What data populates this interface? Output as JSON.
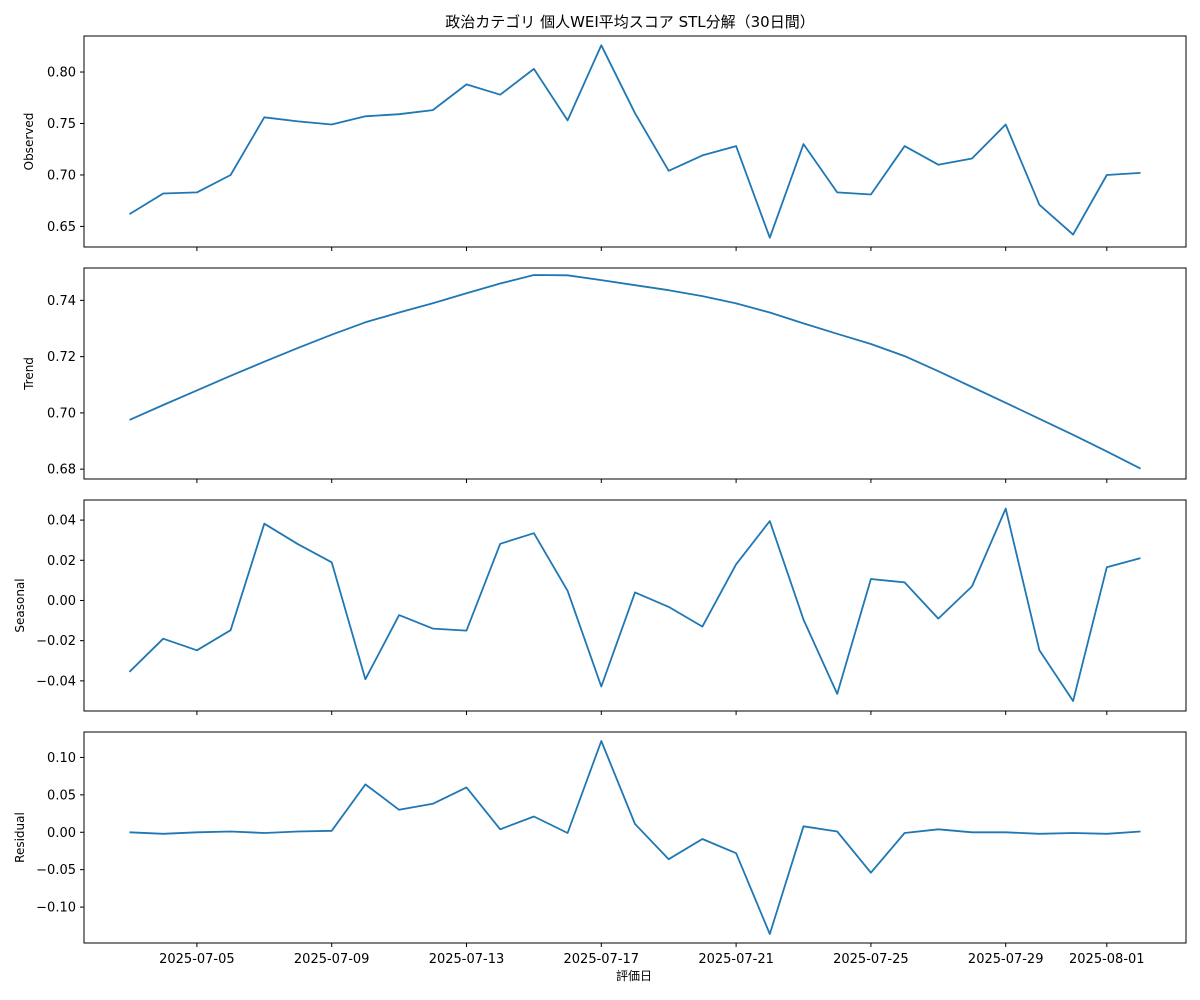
{
  "chart_data": {
    "type": "line",
    "title": "政治カテゴリ 個人WEI平均スコア STL分解（30日間）",
    "xlabel": "評価日",
    "x": [
      "2025-07-03",
      "2025-07-04",
      "2025-07-05",
      "2025-07-06",
      "2025-07-07",
      "2025-07-08",
      "2025-07-09",
      "2025-07-10",
      "2025-07-11",
      "2025-07-12",
      "2025-07-13",
      "2025-07-14",
      "2025-07-15",
      "2025-07-16",
      "2025-07-17",
      "2025-07-18",
      "2025-07-19",
      "2025-07-20",
      "2025-07-21",
      "2025-07-22",
      "2025-07-23",
      "2025-07-24",
      "2025-07-25",
      "2025-07-26",
      "2025-07-27",
      "2025-07-28",
      "2025-07-29",
      "2025-07-30",
      "2025-07-31",
      "2025-08-01",
      "2025-08-02"
    ],
    "x_ticks": [
      "2025-07-05",
      "2025-07-09",
      "2025-07-13",
      "2025-07-17",
      "2025-07-21",
      "2025-07-25",
      "2025-07-29",
      "2025-08-01"
    ],
    "line_color": "#1f77b4",
    "panels": [
      {
        "name": "observed",
        "ylabel": "Observed",
        "ylim": [
          0.63,
          0.835
        ],
        "yticks": [
          "0.65",
          "0.70",
          "0.75",
          "0.80"
        ],
        "values": [
          0.662,
          0.682,
          0.683,
          0.7,
          0.756,
          0.752,
          0.749,
          0.757,
          0.759,
          0.763,
          0.788,
          0.778,
          0.803,
          0.753,
          0.826,
          0.76,
          0.704,
          0.719,
          0.728,
          0.639,
          0.73,
          0.683,
          0.681,
          0.728,
          0.71,
          0.716,
          0.749,
          0.671,
          0.642,
          0.7,
          0.702
        ]
      },
      {
        "name": "trend",
        "ylabel": "Trend",
        "ylim": [
          0.6765,
          0.7515
        ],
        "yticks": [
          "0.68",
          "0.70",
          "0.72",
          "0.74"
        ],
        "values": [
          0.6975,
          0.7028,
          0.708,
          0.7132,
          0.7182,
          0.7231,
          0.7278,
          0.7322,
          0.7357,
          0.739,
          0.7425,
          0.746,
          0.749,
          0.7489,
          0.7472,
          0.7454,
          0.7436,
          0.7415,
          0.7389,
          0.7357,
          0.7318,
          0.7281,
          0.7245,
          0.7202,
          0.7148,
          0.7092,
          0.7036,
          0.6979,
          0.6922,
          0.6863,
          0.6802
        ]
      },
      {
        "name": "seasonal",
        "ylabel": "Seasonal",
        "ylim": [
          -0.055,
          0.05
        ],
        "yticks": [
          "−0.04",
          "−0.02",
          "0.00",
          "0.02",
          "0.04"
        ],
        "values": [
          -0.0355,
          -0.019,
          -0.0248,
          -0.0148,
          0.0382,
          0.028,
          0.019,
          -0.0392,
          -0.0073,
          -0.014,
          -0.015,
          0.0282,
          0.0335,
          0.0048,
          -0.0428,
          0.004,
          -0.0032,
          -0.013,
          0.018,
          0.0395,
          -0.0095,
          -0.0465,
          0.0107,
          0.009,
          -0.009,
          0.007,
          0.0457,
          -0.0248,
          -0.05,
          0.0165,
          0.0211
        ]
      },
      {
        "name": "residual",
        "ylabel": "Residual",
        "ylim": [
          -0.148,
          0.134
        ],
        "yticks": [
          "−0.10",
          "−0.05",
          "0.00",
          "0.05",
          "0.10"
        ],
        "values": [
          0.0,
          -0.002,
          0.0,
          0.001,
          -0.001,
          0.001,
          0.002,
          0.064,
          0.03,
          0.038,
          0.06,
          0.004,
          0.021,
          -0.001,
          0.122,
          0.011,
          -0.036,
          -0.009,
          -0.028,
          -0.136,
          0.008,
          0.001,
          -0.054,
          -0.001,
          0.004,
          0.0,
          0.0,
          -0.002,
          -0.001,
          -0.002,
          0.001
        ]
      }
    ]
  }
}
